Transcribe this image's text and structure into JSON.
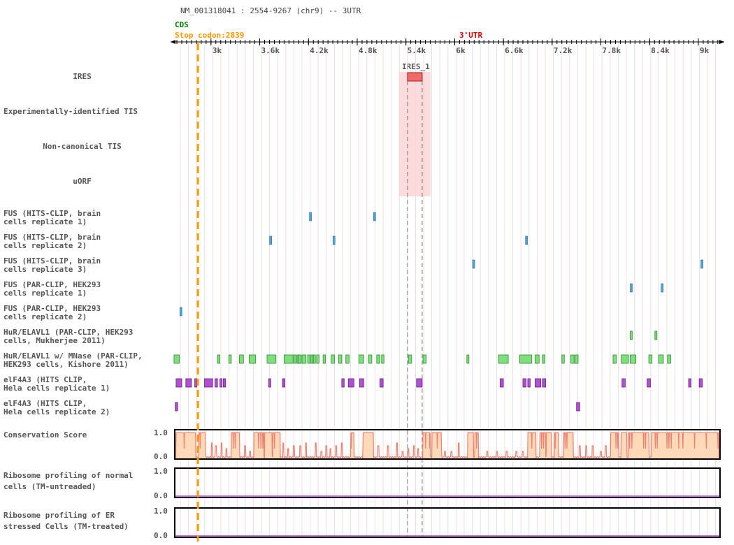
{
  "header": {
    "title": "NM_001318041 : 2554-9267 (chr9) -- 3UTR",
    "cds_label": "CDS",
    "stop_codon_label": "Stop codon:2839",
    "utr_label": "3'UTR"
  },
  "colors": {
    "cds": "#008000",
    "stop_codon": "#FF9900",
    "utr": "#E00000",
    "ires_box": "#F26B6B",
    "ires_highlight": "#F9CFCF",
    "fus": "#4FA3D8",
    "hur": "#7CE07C",
    "elf4a3": "#B050D0",
    "conservation_line": "#F08070",
    "conservation_fill": "#FFD9B8",
    "ribo_line": "#B050D0"
  },
  "axis": {
    "start": 2554,
    "end": 9267,
    "tick_labels": [
      "3k",
      "3.6k",
      "4.2k",
      "4.8k",
      "5.4k",
      "6k",
      "6.6k",
      "7.2k",
      "7.8k",
      "8.4k",
      "9k"
    ],
    "tick_values": [
      3000,
      3600,
      4200,
      4800,
      5400,
      6000,
      6600,
      7200,
      7800,
      8400,
      9000
    ]
  },
  "ires": {
    "name": "IRES_1",
    "start": 5420,
    "end": 5600
  },
  "stop_codon_position": 2839,
  "tracks": [
    {
      "label": "IRES"
    },
    {
      "label": "Experimentally-identified TIS"
    },
    {
      "label": "Non-canonical TIS"
    },
    {
      "label": "uORF"
    },
    {
      "label": "FUS (HITS-CLIP, brain\ncells replicate 1)",
      "line1": "FUS (HITS-CLIP, brain",
      "line2": "cells replicate 1)",
      "positions": [
        4220,
        5010
      ]
    },
    {
      "label": "FUS (HITS-CLIP, brain\ncells replicate 2)",
      "line1": "FUS (HITS-CLIP, brain",
      "line2": "cells replicate 2)",
      "positions": [
        3730,
        4510,
        6880
      ]
    },
    {
      "label": "FUS (HITS-CLIP, brain\ncells replicate 3)",
      "line1": "FUS (HITS-CLIP, brain",
      "line2": "cells replicate 3)",
      "positions": [
        6230,
        9040
      ]
    },
    {
      "label": "FUS (PAR-CLIP, HEK293\ncells replicate 1)",
      "line1": "FUS (PAR-CLIP, HEK293",
      "line2": "cells replicate 1)",
      "positions": [
        8170,
        8550
      ]
    },
    {
      "label": "FUS (PAR-CLIP, HEK293\ncells replicate 2)",
      "line1": "FUS (PAR-CLIP, HEK293",
      "line2": "cells replicate 2)",
      "positions": [
        2625
      ]
    },
    {
      "label": "HuR/ELAVL1 (PAR-CLIP, HEK293\ncells, Mukherjee 2011)",
      "line1": "HuR/ELAVL1 (PAR-CLIP, HEK293",
      "line2": "cells, Mukherjee 2011)",
      "segments": [
        [
          8160,
          8185
        ],
        [
          8465,
          8485
        ]
      ]
    },
    {
      "label": "HuR/ELAVL1 w/ MNase (PAR-CLIP,\nHEK293 cells, Kishore 2011)",
      "line1": "HuR/ELAVL1 w/ MNase (PAR-CLIP,",
      "line2": "HEK293 cells, Kishore 2011)",
      "segments": [
        [
          2545,
          2610
        ],
        [
          3080,
          3110
        ],
        [
          3220,
          3250
        ],
        [
          3350,
          3400
        ],
        [
          3470,
          3550
        ],
        [
          3690,
          3800
        ],
        [
          3900,
          4010
        ],
        [
          4020,
          4050
        ],
        [
          4060,
          4070
        ],
        [
          4080,
          4110
        ],
        [
          4120,
          4170
        ],
        [
          4190,
          4220
        ],
        [
          4230,
          4250
        ],
        [
          4260,
          4280
        ],
        [
          4300,
          4330
        ],
        [
          4380,
          4410
        ],
        [
          4480,
          4520
        ],
        [
          4570,
          4610
        ],
        [
          4660,
          4700
        ],
        [
          4820,
          4880
        ],
        [
          4940,
          4980
        ],
        [
          5040,
          5080
        ],
        [
          5100,
          5130
        ],
        [
          5430,
          5470
        ],
        [
          5610,
          5650
        ],
        [
          6150,
          6170
        ],
        [
          6540,
          6660
        ],
        [
          6800,
          6950
        ],
        [
          6990,
          7040
        ],
        [
          7080,
          7110
        ],
        [
          7320,
          7350
        ],
        [
          7430,
          7470
        ],
        [
          7480,
          7520
        ],
        [
          7950,
          7990
        ],
        [
          8050,
          8140
        ],
        [
          8160,
          8230
        ],
        [
          8390,
          8430
        ],
        [
          8510,
          8570
        ],
        [
          8620,
          8660
        ]
      ]
    },
    {
      "label": "elF4A3 (HITS CLIP,\nHela cells replicate 1)",
      "line1": "elF4A3 (HITS CLIP,",
      "line2": "Hela cells replicate 1)",
      "segments": [
        [
          2570,
          2640
        ],
        [
          2690,
          2760
        ],
        [
          2800,
          2825
        ],
        [
          2920,
          3020
        ],
        [
          3050,
          3080
        ],
        [
          3110,
          3135
        ],
        [
          3150,
          3180
        ],
        [
          3710,
          3735
        ],
        [
          3880,
          3910
        ],
        [
          4610,
          4640
        ],
        [
          4690,
          4760
        ],
        [
          4830,
          4880
        ],
        [
          5080,
          5120
        ],
        [
          5530,
          5600
        ],
        [
          6560,
          6600
        ],
        [
          6840,
          6880
        ],
        [
          6900,
          6930
        ],
        [
          6990,
          7060
        ],
        [
          7080,
          7120
        ],
        [
          8060,
          8100
        ],
        [
          8370,
          8410
        ],
        [
          8880,
          8910
        ],
        [
          9010,
          9050
        ]
      ]
    },
    {
      "label": "elF4A3 (HITS CLIP,\nHela cells replicate 2)",
      "line1": "elF4A3 (HITS CLIP,",
      "line2": "Hela cells replicate 2)",
      "segments": [
        [
          2560,
          2590
        ],
        [
          7500,
          7540
        ]
      ]
    },
    {
      "label": "Conservation Score",
      "ymax": "1.0",
      "ymin": "0.0"
    },
    {
      "label": "Ribosome profiling of normal\ncells (TM-untreaded)",
      "line1": "Ribosome profiling of normal",
      "line2": "cells (TM-untreaded)",
      "ymax": "1.0",
      "ymin": "0.0"
    },
    {
      "label": "Ribosome profiling of ER\nstressed Cells (TM-treated)",
      "line1": "Ribosome profiling of ER",
      "line2": "stressed Cells (TM-treated)",
      "ymax": "1.0",
      "ymin": "0.0"
    }
  ],
  "conservation": {
    "high_regions": [
      [
        2570,
        2810
      ],
      [
        2850,
        2930
      ],
      [
        3250,
        3350
      ],
      [
        3530,
        3650
      ],
      [
        3660,
        3750
      ],
      [
        3760,
        3850
      ],
      [
        4720,
        4760
      ],
      [
        4870,
        5000
      ],
      [
        5610,
        5700
      ],
      [
        5720,
        5840
      ],
      [
        6160,
        6230
      ],
      [
        6250,
        6290
      ],
      [
        6900,
        7000
      ],
      [
        7050,
        7120
      ],
      [
        7130,
        7190
      ],
      [
        7230,
        7280
      ],
      [
        7340,
        7460
      ],
      [
        7920,
        8020
      ],
      [
        8050,
        8120
      ],
      [
        8140,
        8390
      ],
      [
        8420,
        9250
      ]
    ],
    "spikes": [
      3010,
      3060,
      3130,
      3190,
      3420,
      3480,
      3890,
      3950,
      4020,
      4100,
      4170,
      4290,
      4360,
      4420,
      4470,
      4540,
      4610,
      5060,
      5180,
      5290,
      5360,
      5430,
      5500,
      5550,
      5880,
      5960,
      6050,
      6400,
      6520,
      6640,
      6760,
      6840,
      7540,
      7620,
      7700,
      7800,
      7860
    ]
  }
}
